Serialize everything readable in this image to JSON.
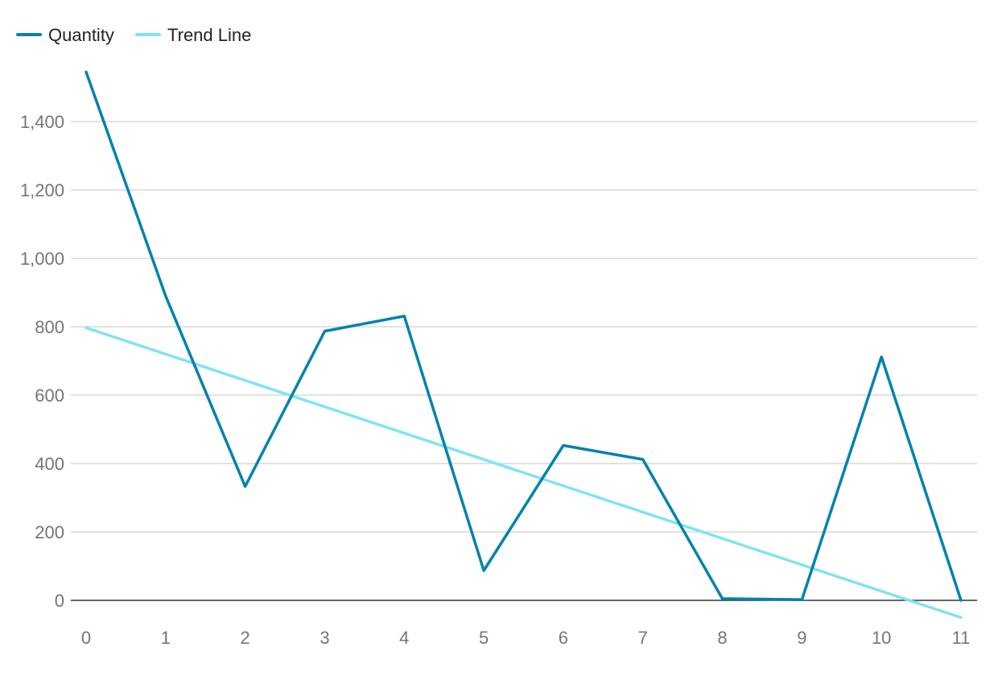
{
  "colors": {
    "quantity": "#0083ad",
    "trend": "#7fe3f7",
    "grid": "#d9d9d9",
    "baseline": "#333333",
    "tick_text": "#757575"
  },
  "legend": {
    "placement": "top-left",
    "items": [
      {
        "label": "Quantity",
        "color_key": "quantity"
      },
      {
        "label": "Trend Line",
        "color_key": "trend"
      }
    ]
  },
  "chart_data": {
    "type": "line",
    "title": "",
    "xlabel": "",
    "ylabel": "",
    "x": [
      0,
      1,
      2,
      3,
      4,
      5,
      6,
      7,
      8,
      9,
      10,
      11
    ],
    "x_tick_labels": [
      "0",
      "1",
      "2",
      "3",
      "4",
      "5",
      "6",
      "7",
      "8",
      "9",
      "10",
      "11"
    ],
    "ylim": [
      0,
      1540
    ],
    "y_ticks": [
      0,
      200,
      400,
      600,
      800,
      1000,
      1200,
      1400
    ],
    "y_tick_labels": [
      "0",
      "200",
      "400",
      "600",
      "800",
      "1,000",
      "1,200",
      "1,400"
    ],
    "grid": true,
    "series": [
      {
        "name": "Quantity",
        "color_key": "quantity",
        "values": [
          1545,
          890,
          333,
          787,
          831,
          87,
          453,
          412,
          5,
          2,
          712,
          0
        ]
      },
      {
        "name": "Trend Line",
        "color_key": "trend",
        "x": [
          0,
          11
        ],
        "values": [
          797,
          -50
        ]
      }
    ]
  }
}
